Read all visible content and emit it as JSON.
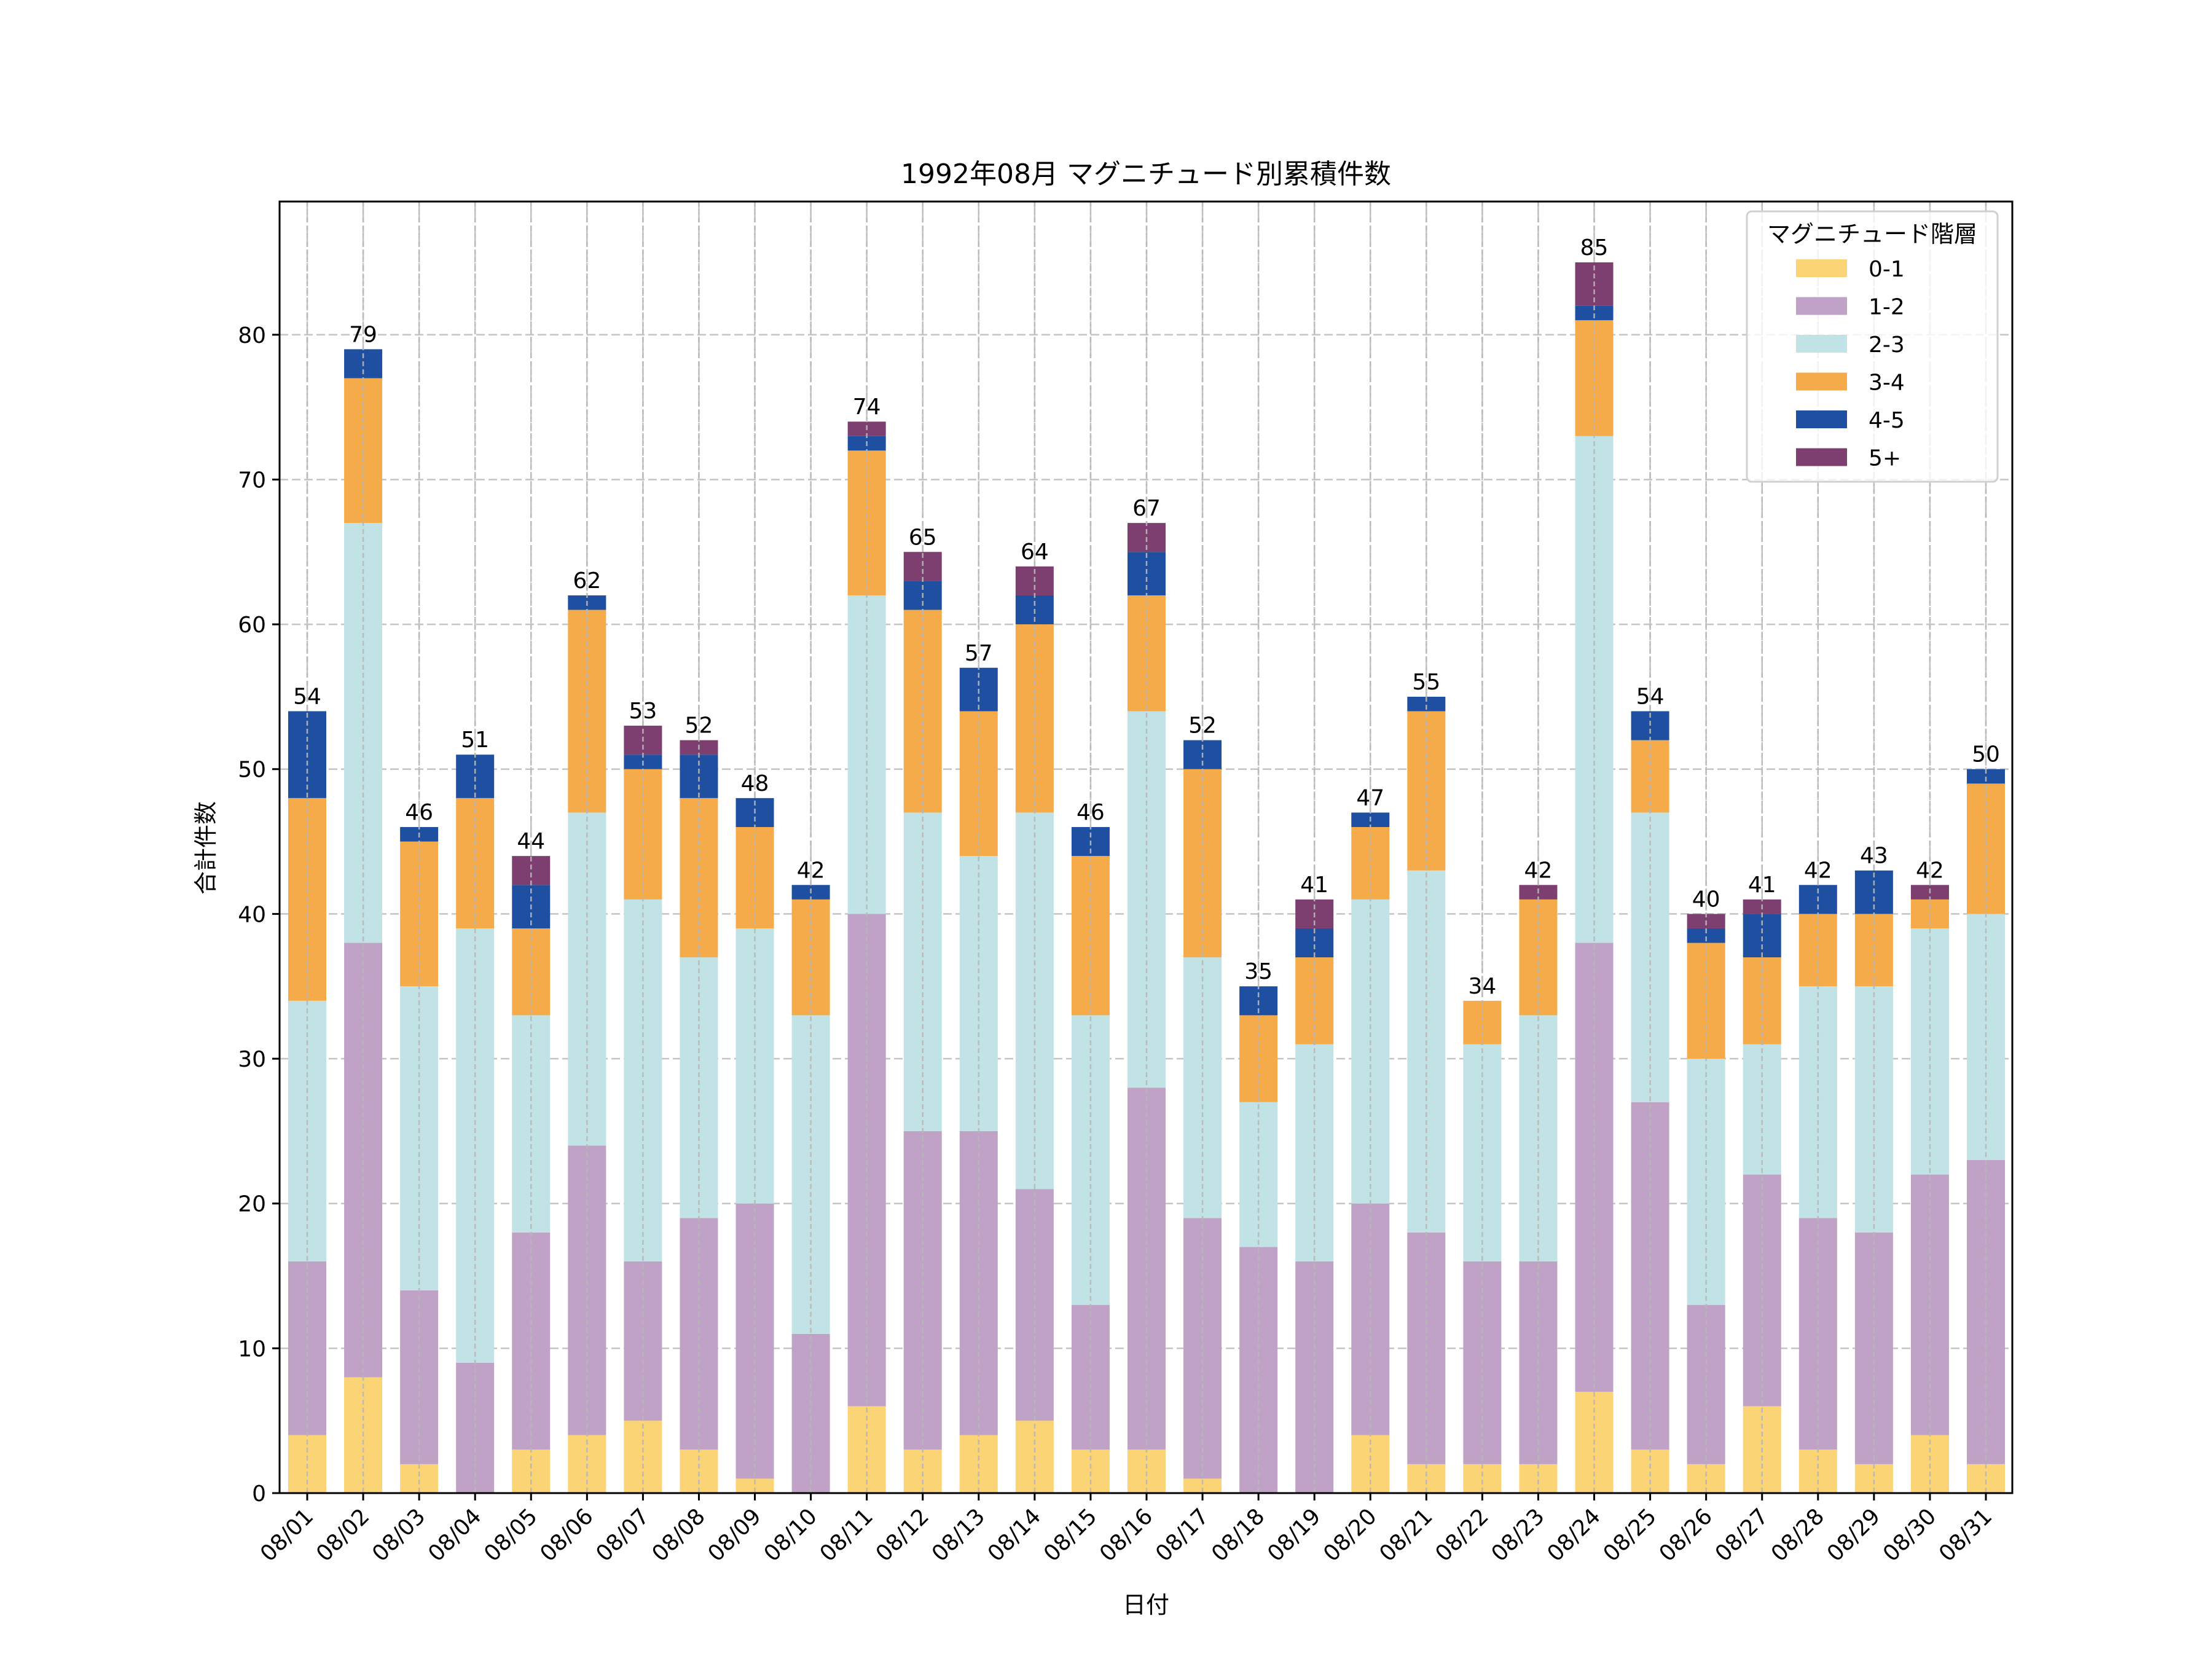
{
  "chart_data": {
    "type": "bar",
    "stacked": true,
    "title": "1992年08月 マグニチュード別累積件数",
    "xlabel": "日付",
    "ylabel": "合計件数",
    "ylim": [
      0,
      89
    ],
    "yticks": [
      0,
      10,
      20,
      30,
      40,
      50,
      60,
      70,
      80
    ],
    "grid": true,
    "legend": {
      "title": "マグニチュード階層",
      "position": "top-right"
    },
    "categories": [
      "08/01",
      "08/02",
      "08/03",
      "08/04",
      "08/05",
      "08/06",
      "08/07",
      "08/08",
      "08/09",
      "08/10",
      "08/11",
      "08/12",
      "08/13",
      "08/14",
      "08/15",
      "08/16",
      "08/17",
      "08/18",
      "08/19",
      "08/20",
      "08/21",
      "08/22",
      "08/23",
      "08/24",
      "08/25",
      "08/26",
      "08/27",
      "08/28",
      "08/29",
      "08/30",
      "08/31"
    ],
    "series": [
      {
        "name": "0-1",
        "color": "#fbd475",
        "values": [
          4,
          8,
          2,
          0,
          3,
          4,
          5,
          3,
          1,
          0,
          6,
          3,
          4,
          5,
          3,
          3,
          1,
          0,
          0,
          4,
          2,
          2,
          2,
          7,
          3,
          2,
          6,
          3,
          2,
          4,
          2
        ]
      },
      {
        "name": "1-2",
        "color": "#bfa2c6",
        "values": [
          12,
          30,
          12,
          9,
          15,
          20,
          11,
          16,
          19,
          11,
          34,
          22,
          21,
          16,
          10,
          25,
          18,
          17,
          16,
          16,
          16,
          14,
          14,
          31,
          24,
          11,
          16,
          16,
          16,
          18,
          21
        ]
      },
      {
        "name": "2-3",
        "color": "#c1e3e6",
        "values": [
          18,
          29,
          21,
          30,
          15,
          23,
          25,
          18,
          19,
          22,
          22,
          22,
          19,
          26,
          20,
          26,
          18,
          10,
          15,
          21,
          25,
          15,
          17,
          35,
          20,
          17,
          9,
          16,
          17,
          17,
          17
        ]
      },
      {
        "name": "3-4",
        "color": "#f5ab4a",
        "values": [
          14,
          10,
          10,
          9,
          6,
          14,
          9,
          11,
          7,
          8,
          10,
          14,
          10,
          13,
          11,
          8,
          13,
          6,
          6,
          5,
          11,
          3,
          8,
          8,
          5,
          8,
          6,
          5,
          5,
          2,
          9
        ]
      },
      {
        "name": "4-5",
        "color": "#1f4fa0",
        "values": [
          6,
          2,
          1,
          3,
          3,
          1,
          1,
          3,
          2,
          1,
          1,
          2,
          3,
          2,
          2,
          3,
          2,
          2,
          2,
          1,
          1,
          0,
          0,
          1,
          2,
          1,
          3,
          2,
          3,
          0,
          1
        ]
      },
      {
        "name": "5+",
        "color": "#7c3f6f",
        "values": [
          0,
          0,
          0,
          0,
          2,
          0,
          2,
          1,
          0,
          0,
          1,
          2,
          0,
          2,
          0,
          2,
          0,
          0,
          2,
          0,
          0,
          0,
          1,
          3,
          0,
          1,
          1,
          0,
          0,
          1,
          0
        ]
      }
    ],
    "totals": [
      54,
      79,
      46,
      51,
      44,
      62,
      53,
      52,
      48,
      42,
      74,
      65,
      57,
      64,
      46,
      67,
      52,
      35,
      41,
      47,
      55,
      34,
      42,
      85,
      54,
      40,
      41,
      42,
      43,
      42,
      50
    ]
  }
}
